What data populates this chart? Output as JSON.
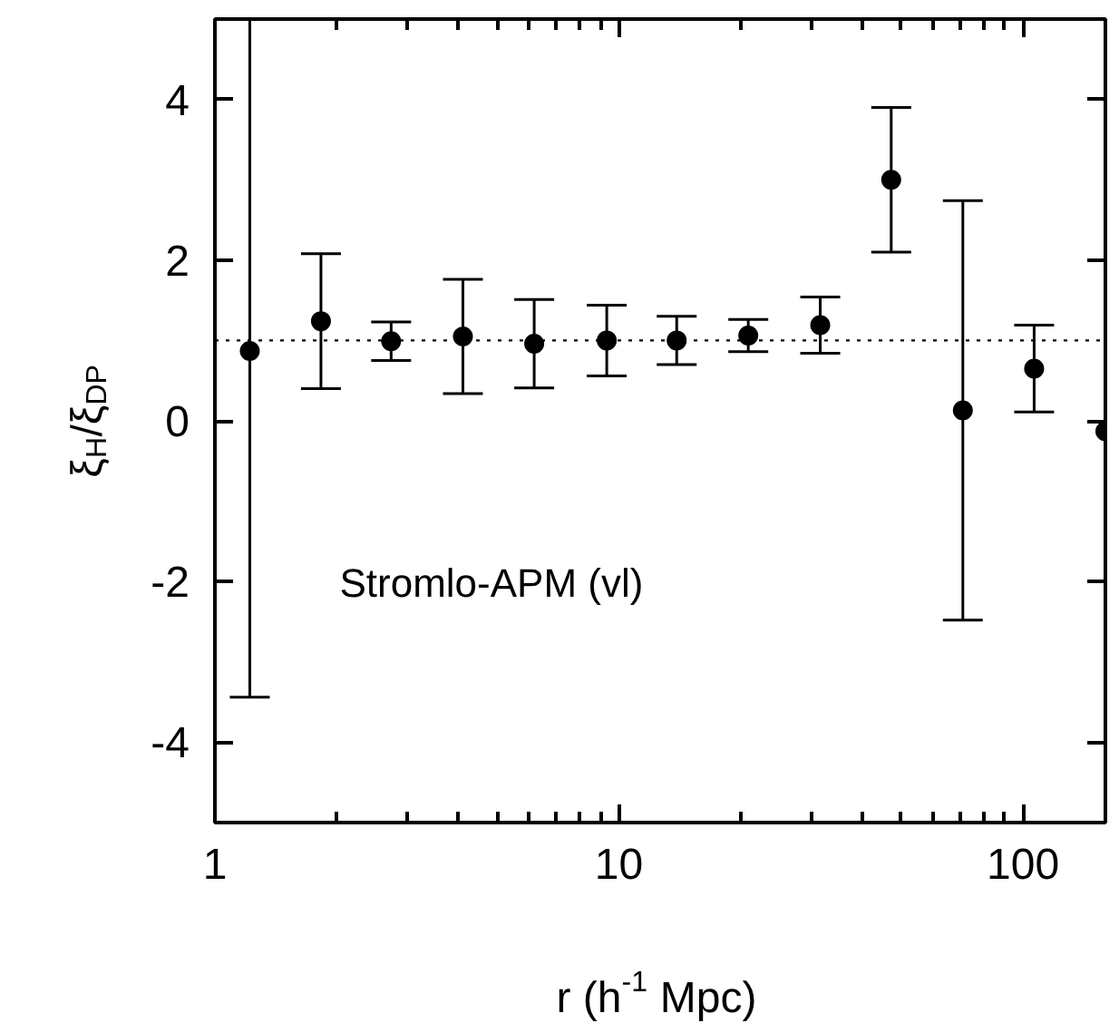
{
  "chart_data": {
    "type": "scatter",
    "xlabel": "r (h$^{-1}$ Mpc)",
    "ylabel": "ξ$_{H}$/ξ$_{DP}$",
    "annotations": [
      "Stromlo-APM (vl)"
    ],
    "x": [
      1.22,
      1.83,
      2.73,
      4.11,
      6.17,
      9.33,
      13.9,
      20.9,
      31.5,
      47.2,
      71,
      106.6,
      160
    ],
    "series": [
      {
        "color": "#000000",
        "values": [
          0.87,
          1.24,
          0.99,
          1.05,
          0.96,
          1.0,
          1.0,
          1.06,
          1.19,
          3.0,
          0.13,
          0.65,
          -0.13
        ],
        "errors": [
          [
            -3.44,
            5
          ],
          0.84,
          0.24,
          0.71,
          0.55,
          0.44,
          0.3,
          0.2,
          0.35,
          0.9,
          2.61,
          0.54,
          [
            -5,
            5
          ]
        ]
      }
    ],
    "log": "x",
    "xlim": [
      1,
      160
    ],
    "xticks": [
      1,
      10,
      100
    ],
    "ylim": [
      -5,
      5
    ],
    "yticks": [
      -4,
      -2,
      0,
      2,
      4
    ],
    "ref_lines": [
      {
        "axis": "y",
        "value": 1,
        "line_style": "dotted",
        "color": "#000000"
      }
    ],
    "marker": "circle",
    "grid": false
  }
}
